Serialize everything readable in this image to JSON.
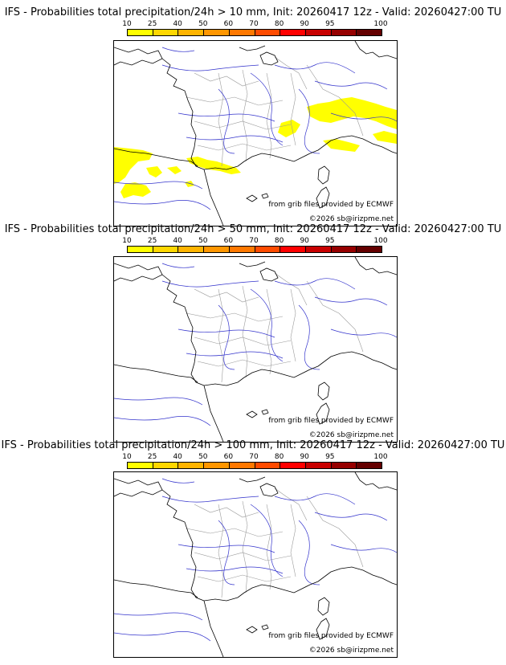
{
  "color_scale": {
    "ticks": [
      "10",
      "25",
      "40",
      "50",
      "60",
      "70",
      "80",
      "90",
      "95",
      "100"
    ],
    "colors": [
      "#ffff00",
      "#ffd700",
      "#ffb400",
      "#ff9600",
      "#ff7800",
      "#ff4b00",
      "#ff0000",
      "#c80000",
      "#960000",
      "#640000"
    ]
  },
  "panels": [
    {
      "title": "IFS - Probabilities total precipitation/24h > 10 mm, Init: 20260417 12z - Valid: 20260427:00 TU",
      "has_precip": true
    },
    {
      "title": "IFS - Probabilities total precipitation/24h > 50 mm, Init: 20260417 12z - Valid: 20260427:00 TU",
      "has_precip": false
    },
    {
      "title": "IFS - Probabilities total precipitation/24h > 100 mm, Init: 20260417 12z - Valid: 20260427:00 TU",
      "has_precip": false
    }
  ],
  "credits": {
    "source": "from grib files provided by ECMWF",
    "copyright": "©2026 sb@irizpme.net"
  },
  "colors": {
    "coast": "#000000",
    "rivers": "#3333cc",
    "borders": "#999999",
    "precip": "#ffff00"
  }
}
